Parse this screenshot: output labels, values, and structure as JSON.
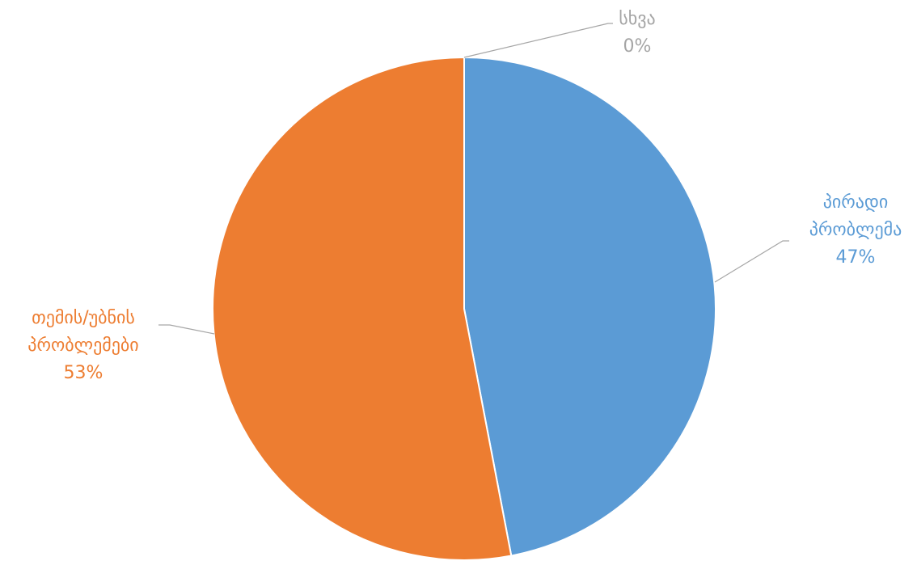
{
  "chart_data": {
    "type": "pie",
    "title": "",
    "slices": [
      {
        "label_lines": [
          "პირადი",
          "პრობლემა"
        ],
        "value": 47,
        "value_label": "47%",
        "color": "#5B9BD5"
      },
      {
        "label_lines": [
          "თემის/უბნის",
          "პრობლემები"
        ],
        "value": 53,
        "value_label": "53%",
        "color": "#ED7D31"
      },
      {
        "label_lines": [
          "სხვა"
        ],
        "value": 0,
        "value_label": "0%",
        "color": "#A5A5A5"
      }
    ],
    "start_angle_deg": 0,
    "direction": "clockwise",
    "legend": "none",
    "data_labels": "outside-with-leader-lines"
  }
}
